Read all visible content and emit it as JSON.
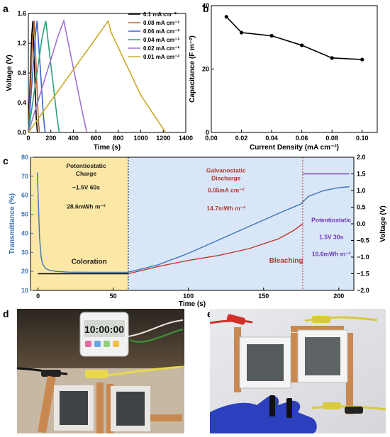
{
  "panels": {
    "a": "a",
    "b": "b",
    "c": "c",
    "d": "d",
    "e": "e"
  },
  "chart_data": [
    {
      "id": "a",
      "type": "line",
      "xlabel": "Time (s)",
      "ylabel": "Voltage (V)",
      "xlim": [
        0,
        1400
      ],
      "ylim": [
        0,
        1.6
      ],
      "xticks": [
        0,
        200,
        400,
        600,
        800,
        1000,
        1200,
        1400
      ],
      "yticks": [
        0.0,
        0.4,
        0.8,
        1.2,
        1.6
      ],
      "legend_position": "top-right",
      "series": [
        {
          "name": "0.1 mA cm⁻²",
          "color": "#000000",
          "x": [
            0,
            30,
            40,
            70,
            80
          ],
          "y": [
            0,
            1.3,
            1.5,
            0.2,
            0
          ]
        },
        {
          "name": "0.08 mA cm⁻²",
          "color": "#b5652d",
          "x": [
            0,
            40,
            52,
            88,
            98
          ],
          "y": [
            0,
            1.3,
            1.5,
            0.2,
            0
          ]
        },
        {
          "name": "0.06 mA cm⁻²",
          "color": "#3a63c9",
          "x": [
            0,
            62,
            78,
            135,
            150
          ],
          "y": [
            0,
            1.3,
            1.5,
            0.2,
            0
          ]
        },
        {
          "name": "0.04 mA cm⁻²",
          "color": "#2aa272",
          "x": [
            0,
            125,
            155,
            255,
            275
          ],
          "y": [
            0,
            1.3,
            1.5,
            0.2,
            0
          ]
        },
        {
          "name": "0.02 mA cm⁻²",
          "color": "#a070d0",
          "x": [
            0,
            265,
            315,
            490,
            520
          ],
          "y": [
            0,
            1.3,
            1.5,
            0.2,
            0
          ]
        },
        {
          "name": "0.01 mA cm⁻²",
          "color": "#c9aa2a",
          "x": [
            0,
            640,
            710,
            735,
            1000,
            1220
          ],
          "y": [
            0,
            1.35,
            1.5,
            1.35,
            0.5,
            0
          ]
        }
      ]
    },
    {
      "id": "b",
      "type": "line",
      "xlabel": "Current Density (mA cm⁻²)",
      "ylabel": "Capacitance (F m⁻²)",
      "xlim": [
        0,
        0.11
      ],
      "ylim": [
        0,
        40
      ],
      "xticks": [
        0.0,
        0.02,
        0.04,
        0.06,
        0.08,
        0.1
      ],
      "yticks": [
        0,
        20,
        40
      ],
      "series": [
        {
          "color": "#000000",
          "x": [
            0.01,
            0.02,
            0.04,
            0.06,
            0.08,
            0.1
          ],
          "y": [
            36.5,
            31.5,
            30.5,
            27.5,
            23.5,
            23.0
          ]
        }
      ]
    },
    {
      "id": "c",
      "type": "line",
      "xlabel": "Time (s)",
      "ylabel_left": "Transmittance (%)",
      "ylabel_right": "Voltage (V)",
      "xlim": [
        -5,
        210
      ],
      "ylim_left": [
        10,
        80
      ],
      "ylim_right": [
        -2.0,
        2.0
      ],
      "xticks": [
        0,
        50,
        100,
        150,
        200
      ],
      "yticks_left": [
        10,
        20,
        30,
        40,
        50,
        60,
        70,
        80
      ],
      "yticks_right": [
        -2.0,
        -1.5,
        -1.0,
        -0.5,
        0.0,
        0.5,
        1.0,
        1.5,
        2.0
      ],
      "regions": [
        {
          "x": [
            -5,
            60
          ],
          "color": "#fbe7a6"
        },
        {
          "x": [
            60,
            210
          ],
          "color": "#d9e6f8"
        }
      ],
      "dividers": [
        60,
        176
      ],
      "series": [
        {
          "axis": "left",
          "color": "#3d74b6",
          "x": [
            -0.5,
            0,
            1,
            2,
            3,
            5,
            8,
            12,
            20,
            40,
            60,
            80,
            100,
            120,
            140,
            160,
            175,
            176,
            180,
            190,
            200,
            207
          ],
          "y": [
            72,
            62,
            38,
            28,
            24,
            21.5,
            20.5,
            20,
            19.6,
            19.5,
            19.5,
            23.5,
            29.5,
            36.5,
            43.5,
            50.5,
            55.5,
            56.5,
            59.5,
            62.5,
            64,
            64.5
          ]
        },
        {
          "axis": "right",
          "color": "#000000",
          "x": [
            0,
            60
          ],
          "y": [
            -1.5,
            -1.5
          ]
        },
        {
          "axis": "right",
          "color": "#c0392b",
          "x": [
            60,
            80,
            100,
            120,
            140,
            160,
            170,
            176
          ],
          "y": [
            -1.5,
            -1.28,
            -1.1,
            -0.95,
            -0.75,
            -0.45,
            -0.2,
            0.0
          ]
        },
        {
          "axis": "right",
          "color": "#7b3fc4",
          "x": [
            176,
            207
          ],
          "y": [
            1.5,
            1.5
          ]
        }
      ],
      "annotations": [
        {
          "lines": [
            "Potentiostatic",
            "Charge"
          ],
          "color": "#222222"
        },
        {
          "lines": [
            "−1.5V 60s"
          ],
          "color": "#222222"
        },
        {
          "lines": [
            "28.6mWh m⁻²"
          ],
          "color": "#222222"
        },
        {
          "lines": [
            "Coloration"
          ],
          "color": "#222222"
        },
        {
          "lines": [
            "Galvanostatic",
            "Discharge"
          ],
          "color": "#b03a2e"
        },
        {
          "lines": [
            "0.05mA cm⁻²"
          ],
          "color": "#b03a2e"
        },
        {
          "lines": [
            "14.7mWh m⁻²"
          ],
          "color": "#b03a2e"
        },
        {
          "lines": [
            "Bleaching"
          ],
          "color": "#b03a2e"
        },
        {
          "lines": [
            "Potentiostatic"
          ],
          "color": "#6a35b5"
        },
        {
          "lines": [
            "1.5V 30s"
          ],
          "color": "#6a35b5"
        },
        {
          "lines": [
            "10.6mWh m⁻²"
          ],
          "color": "#6a35b5"
        }
      ]
    }
  ],
  "photos": {
    "d": {
      "timer_display": "10:00:00"
    },
    "e": {}
  }
}
